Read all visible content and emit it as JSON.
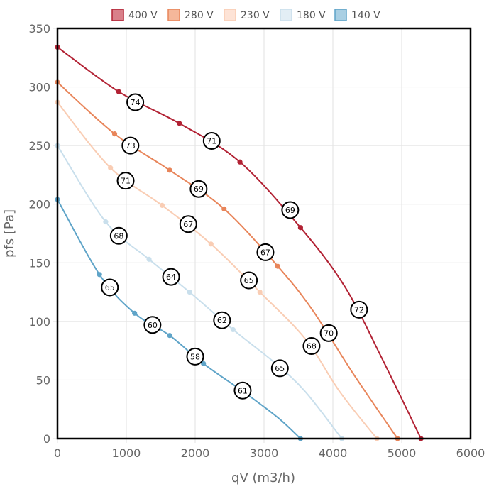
{
  "chart_data": {
    "type": "line",
    "xlabel": "qV (m3/h)",
    "ylabel": "pfs [Pa]",
    "xlim": [
      0,
      6000
    ],
    "ylim": [
      0,
      350
    ],
    "xticks": [
      "0",
      "1000",
      "2000",
      "3000",
      "4000",
      "5000",
      "6000"
    ],
    "yticks": [
      "0",
      "50",
      "100",
      "150",
      "200",
      "250",
      "300",
      "350"
    ],
    "grid": true,
    "legend": "top",
    "series": [
      {
        "name": "400 V",
        "color": "#b22234",
        "fill": "#d9808a",
        "points": [
          [
            0,
            334
          ],
          [
            890,
            296
          ],
          [
            1770,
            269
          ],
          [
            2650,
            236
          ],
          [
            3530,
            180
          ],
          [
            4170,
            130
          ],
          [
            4700,
            70
          ],
          [
            5280,
            0
          ]
        ],
        "markers": [
          [
            0,
            334
          ],
          [
            890,
            296
          ],
          [
            1770,
            269
          ],
          [
            2650,
            236
          ],
          [
            3530,
            180
          ],
          [
            5280,
            0
          ]
        ]
      },
      {
        "name": "280 V",
        "color": "#e8855a",
        "fill": "#f5b79a",
        "points": [
          [
            0,
            304
          ],
          [
            830,
            260
          ],
          [
            1630,
            229
          ],
          [
            2420,
            196
          ],
          [
            3200,
            147
          ],
          [
            3700,
            110
          ],
          [
            4300,
            55
          ],
          [
            4940,
            0
          ]
        ],
        "markers": [
          [
            0,
            304
          ],
          [
            830,
            260
          ],
          [
            1630,
            229
          ],
          [
            2420,
            196
          ],
          [
            3200,
            147
          ],
          [
            4940,
            0
          ]
        ]
      },
      {
        "name": "230 V",
        "color": "#f9cdb4",
        "fill": "#fde3d6",
        "points": [
          [
            0,
            287
          ],
          [
            770,
            231
          ],
          [
            1520,
            199
          ],
          [
            2230,
            166
          ],
          [
            2940,
            125
          ],
          [
            3600,
            85
          ],
          [
            4100,
            40
          ],
          [
            4640,
            0
          ]
        ],
        "markers": [
          [
            0,
            287
          ],
          [
            770,
            231
          ],
          [
            1520,
            199
          ],
          [
            2230,
            166
          ],
          [
            2940,
            125
          ],
          [
            4640,
            0
          ]
        ]
      },
      {
        "name": "180 V",
        "color": "#c9dfec",
        "fill": "#e3eef5",
        "points": [
          [
            0,
            250
          ],
          [
            700,
            185
          ],
          [
            1330,
            153
          ],
          [
            1920,
            125
          ],
          [
            2550,
            93
          ],
          [
            3150,
            65
          ],
          [
            3600,
            40
          ],
          [
            4130,
            0
          ]
        ],
        "markers": [
          [
            0,
            250
          ],
          [
            700,
            185
          ],
          [
            1330,
            153
          ],
          [
            1920,
            125
          ],
          [
            2550,
            93
          ],
          [
            4130,
            0
          ]
        ]
      },
      {
        "name": "140 V",
        "color": "#5fa4c8",
        "fill": "#a9cfe3",
        "points": [
          [
            0,
            204
          ],
          [
            610,
            140
          ],
          [
            1120,
            107
          ],
          [
            1630,
            88
          ],
          [
            2120,
            64
          ],
          [
            2700,
            40
          ],
          [
            3200,
            18
          ],
          [
            3530,
            0
          ]
        ],
        "markers": [
          [
            0,
            204
          ],
          [
            610,
            140
          ],
          [
            1120,
            107
          ],
          [
            1630,
            88
          ],
          [
            2120,
            64
          ],
          [
            3530,
            0
          ]
        ]
      }
    ],
    "annotations": [
      {
        "x": 1130,
        "y": 287,
        "label": "74"
      },
      {
        "x": 2240,
        "y": 254,
        "label": "71"
      },
      {
        "x": 3380,
        "y": 195,
        "label": "69"
      },
      {
        "x": 4380,
        "y": 110,
        "label": "72"
      },
      {
        "x": 1060,
        "y": 250,
        "label": "73"
      },
      {
        "x": 2050,
        "y": 213,
        "label": "69"
      },
      {
        "x": 3020,
        "y": 159,
        "label": "67"
      },
      {
        "x": 3940,
        "y": 90,
        "label": "70"
      },
      {
        "x": 990,
        "y": 220,
        "label": "71"
      },
      {
        "x": 1900,
        "y": 183,
        "label": "67"
      },
      {
        "x": 2780,
        "y": 135,
        "label": "65"
      },
      {
        "x": 3690,
        "y": 79,
        "label": "68"
      },
      {
        "x": 890,
        "y": 173,
        "label": "68"
      },
      {
        "x": 1650,
        "y": 138,
        "label": "64"
      },
      {
        "x": 2390,
        "y": 101,
        "label": "62"
      },
      {
        "x": 3230,
        "y": 60,
        "label": "65"
      },
      {
        "x": 760,
        "y": 129,
        "label": "65"
      },
      {
        "x": 1380,
        "y": 97,
        "label": "60"
      },
      {
        "x": 2000,
        "y": 70,
        "label": "58"
      },
      {
        "x": 2690,
        "y": 41,
        "label": "61"
      }
    ]
  }
}
